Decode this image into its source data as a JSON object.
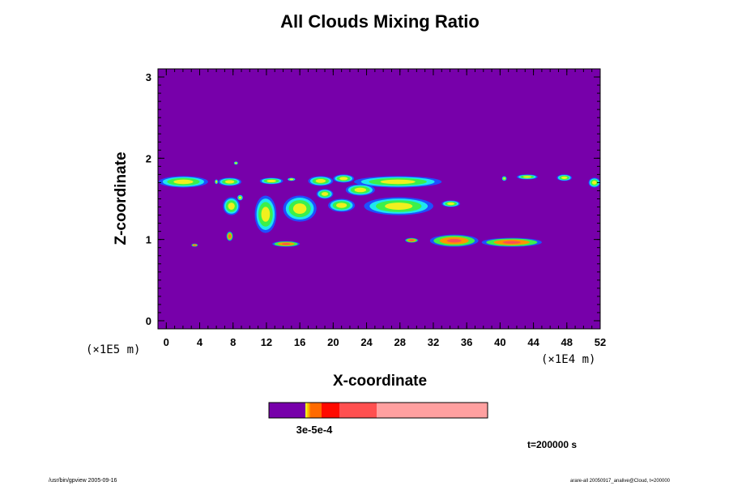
{
  "chart_data": {
    "type": "heatmap",
    "title": "All Clouds Mixing Ratio",
    "xlabel": "X-coordinate",
    "ylabel": "Z-coordinate",
    "x_unit": "(×1E4 m)",
    "y_unit": "(×1E5 m)",
    "xlim": [
      -1,
      52
    ],
    "ylim": [
      -0.1,
      3.1
    ],
    "x_ticks": [
      0,
      4,
      8,
      12,
      16,
      20,
      24,
      28,
      32,
      36,
      40,
      44,
      48,
      52
    ],
    "y_ticks": [
      0,
      1,
      2,
      3
    ],
    "background_value": 0,
    "colorbar_label": "3e-5e-4",
    "colors": {
      "background": "#7700aa",
      "blue": "#1e50ff",
      "cyan": "#1ee6f0",
      "green": "#3cf04b",
      "yellow": "#f0f01e",
      "orange": "#ff9600",
      "red": "#ff0a00",
      "light_red": "#ff5050",
      "pink": "#ffa0a0"
    },
    "colorbar": [
      {
        "color": "#7700aa",
        "width": 45
      },
      {
        "color": "#f0f01e",
        "width": 2
      },
      {
        "color": "#ffc800",
        "width": 2
      },
      {
        "color": "#ff9600",
        "width": 2
      },
      {
        "color": "#ff6a00",
        "width": 14
      },
      {
        "color": "#ff0a00",
        "width": 22
      },
      {
        "color": "#ff5050",
        "width": 46
      },
      {
        "color": "#ffa0a0",
        "width": 137
      }
    ],
    "cloud_regions": [
      {
        "type": "band",
        "x": [
          -0.9,
          5.0
        ],
        "z": [
          1.64,
          1.78
        ]
      },
      {
        "type": "band",
        "x": [
          6.2,
          9.0
        ],
        "z": [
          1.66,
          1.76
        ]
      },
      {
        "type": "blob",
        "x": [
          5.8,
          6.2
        ],
        "z": [
          1.68,
          1.74
        ]
      },
      {
        "type": "blob",
        "x": [
          11.2,
          14.0
        ],
        "z": [
          1.68,
          1.76
        ]
      },
      {
        "type": "blob",
        "x": [
          14.5,
          15.5
        ],
        "z": [
          1.72,
          1.76
        ]
      },
      {
        "type": "blob",
        "x": [
          17.0,
          20.0
        ],
        "z": [
          1.66,
          1.78
        ]
      },
      {
        "type": "blob",
        "x": [
          20.0,
          22.5
        ],
        "z": [
          1.7,
          1.8
        ]
      },
      {
        "type": "band",
        "x": [
          22.5,
          33.0
        ],
        "z": [
          1.64,
          1.78
        ]
      },
      {
        "type": "band",
        "x": [
          50.6,
          52.0
        ],
        "z": [
          1.64,
          1.76
        ]
      },
      {
        "type": "blob",
        "x": [
          6.8,
          8.8
        ],
        "z": [
          1.3,
          1.52
        ]
      },
      {
        "type": "blob",
        "x": [
          8.5,
          9.2
        ],
        "z": [
          1.48,
          1.55
        ]
      },
      {
        "type": "blob",
        "x": [
          10.6,
          13.2
        ],
        "z": [
          1.08,
          1.54
        ]
      },
      {
        "type": "blob",
        "x": [
          14.0,
          18.0
        ],
        "z": [
          1.22,
          1.54
        ]
      },
      {
        "type": "blob",
        "x": [
          18.0,
          20.0
        ],
        "z": [
          1.5,
          1.62
        ]
      },
      {
        "type": "blob",
        "x": [
          19.4,
          22.6
        ],
        "z": [
          1.34,
          1.5
        ]
      },
      {
        "type": "blob",
        "x": [
          21.5,
          25.0
        ],
        "z": [
          1.54,
          1.68
        ]
      },
      {
        "type": "band",
        "x": [
          23.7,
          32.0
        ],
        "z": [
          1.3,
          1.52
        ]
      },
      {
        "type": "blob",
        "x": [
          33.0,
          35.2
        ],
        "z": [
          1.4,
          1.48
        ]
      },
      {
        "type": "blob",
        "x": [
          7.2,
          8.0
        ],
        "z": [
          0.98,
          1.1
        ]
      },
      {
        "type": "blob",
        "x": [
          3.0,
          3.8
        ],
        "z": [
          0.91,
          0.95
        ]
      },
      {
        "type": "band",
        "x": [
          12.7,
          16.0
        ],
        "z": [
          0.91,
          0.98
        ]
      },
      {
        "type": "blob",
        "x": [
          28.6,
          30.2
        ],
        "z": [
          0.96,
          1.02
        ]
      },
      {
        "type": "band",
        "x": [
          31.6,
          37.4
        ],
        "z": [
          0.91,
          1.06
        ]
      },
      {
        "type": "band",
        "x": [
          37.8,
          45.0
        ],
        "z": [
          0.91,
          1.02
        ]
      },
      {
        "type": "blob",
        "x": [
          8.1,
          8.6
        ],
        "z": [
          1.92,
          1.96
        ]
      },
      {
        "type": "blob",
        "x": [
          40.2,
          40.8
        ],
        "z": [
          1.72,
          1.78
        ]
      },
      {
        "type": "blob",
        "x": [
          42.0,
          44.5
        ],
        "z": [
          1.74,
          1.8
        ]
      },
      {
        "type": "blob",
        "x": [
          46.8,
          48.6
        ],
        "z": [
          1.72,
          1.8
        ]
      }
    ]
  },
  "time_label": "t=200000 s",
  "footer_left": "/usr/bin/gpview 2005-09-16",
  "footer_right": "arare-all 20050917_analive@Cloud, t=200000"
}
